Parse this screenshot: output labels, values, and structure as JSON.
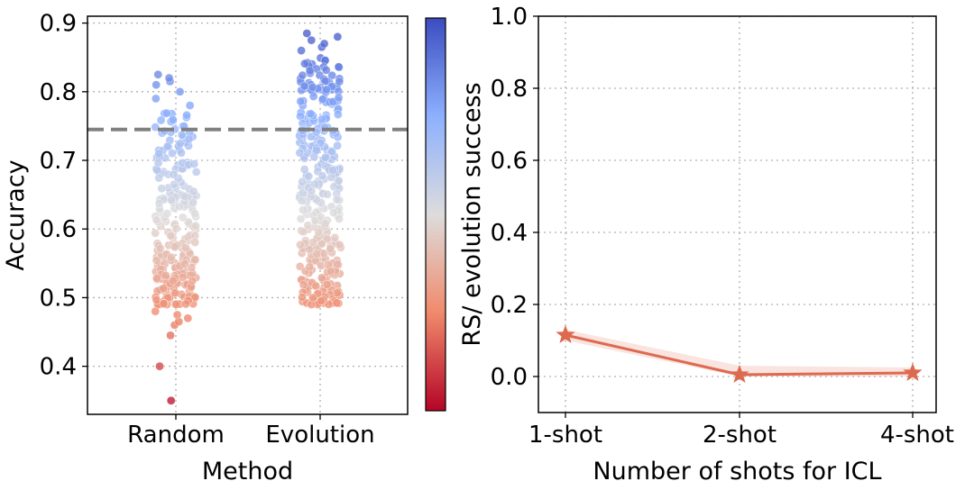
{
  "chart_data": [
    {
      "type": "scatter",
      "subtype": "strip",
      "title": "",
      "xlabel": "Method",
      "ylabel": "Accuracy",
      "categories": [
        "Random",
        "Evolution"
      ],
      "ylim": [
        0.33,
        0.91
      ],
      "yticks": [
        "0.4",
        "0.5",
        "0.6",
        "0.7",
        "0.8",
        "0.9"
      ],
      "yticks_values": [
        0.4,
        0.5,
        0.6,
        0.7,
        0.8,
        0.9
      ],
      "grid": true,
      "reference_line": {
        "value": 0.745,
        "style": "dashed",
        "color": "#808080"
      },
      "colormap": {
        "name": "coolwarm",
        "low": "#b40426",
        "mid": "#dddcdc",
        "high": "#3b4cc0",
        "range": [
          0.33,
          0.91
        ]
      },
      "colorbar_label": "RS/ evolution success",
      "series": [
        {
          "name": "Random",
          "summary": {
            "count": 260,
            "min": 0.35,
            "max": 0.825,
            "bulk_range": [
              0.49,
              0.77
            ]
          },
          "highlighted_values": [
            0.35,
            0.4,
            0.445,
            0.46,
            0.465,
            0.47,
            0.475,
            0.48,
            0.78,
            0.79,
            0.8,
            0.81,
            0.815,
            0.82,
            0.825
          ]
        },
        {
          "name": "Evolution",
          "summary": {
            "count": 340,
            "min": 0.49,
            "max": 0.885,
            "bulk_range": [
              0.49,
              0.85
            ]
          },
          "highlighted_values": [
            0.49,
            0.5,
            0.86,
            0.865,
            0.87,
            0.875,
            0.88,
            0.885
          ]
        }
      ]
    },
    {
      "type": "line",
      "title": "",
      "xlabel": "Number of shots for ICL",
      "ylabel": "",
      "categories": [
        "1-shot",
        "2-shot",
        "4-shot"
      ],
      "ylim": [
        -0.1,
        1.0
      ],
      "yticks": [
        "0.0",
        "0.2",
        "0.4",
        "0.6",
        "0.8",
        "1.0"
      ],
      "yticks_values": [
        0.0,
        0.2,
        0.4,
        0.6,
        0.8,
        1.0
      ],
      "grid": true,
      "series": [
        {
          "values": [
            0.115,
            0.005,
            0.01
          ],
          "ci_lower": [
            0.1,
            0.0,
            0.0
          ],
          "ci_upper": [
            0.13,
            0.03,
            0.025
          ],
          "marker": "star",
          "color": "#dd6a4f"
        }
      ]
    }
  ]
}
